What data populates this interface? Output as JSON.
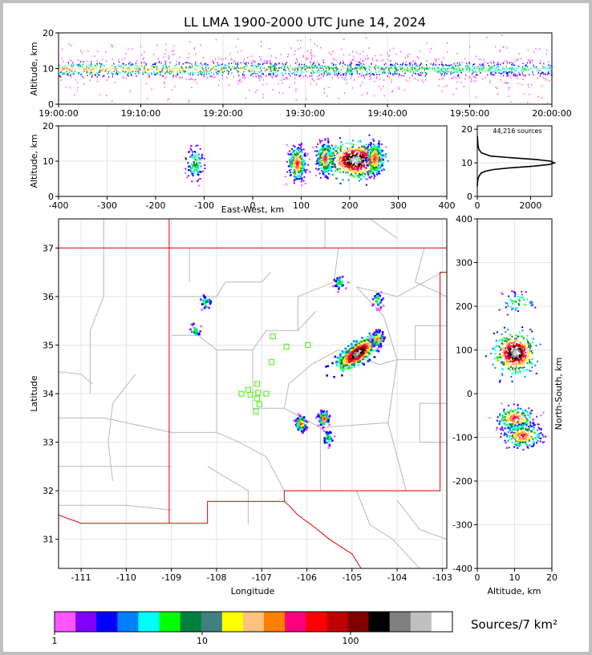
{
  "chart_data": [
    {
      "panel": "time-height",
      "type": "heatmap",
      "title": "LL LMA 1900-2000 UTC June 14, 2024",
      "ylabel": "Altitude, km",
      "xlim": [
        "19:00:00",
        "20:00:00"
      ],
      "ylim": [
        0,
        20
      ],
      "xticks": [
        "19:00:00",
        "19:10:00",
        "19:20:00",
        "19:30:00",
        "19:40:00",
        "19:50:00",
        "20:00:00"
      ],
      "yticks": [
        0,
        10,
        20
      ],
      "band_center_km": 10,
      "grid": true
    },
    {
      "panel": "east-west-altitude",
      "type": "heatmap",
      "xlabel": "East-West, km",
      "ylabel": "Altitude, km",
      "xlim": [
        -400,
        400
      ],
      "ylim": [
        0,
        20
      ],
      "xticks": [
        -400,
        -300,
        -200,
        -100,
        0,
        100,
        200,
        300,
        400
      ],
      "yticks": [
        0,
        10,
        20
      ],
      "clusters": [
        {
          "x": -120,
          "alt": 9.5,
          "density": "low"
        },
        {
          "x": 90,
          "alt": 9.5,
          "density": "medium"
        },
        {
          "x": 148,
          "alt": 11,
          "density": "medium"
        },
        {
          "x": 210,
          "alt": 10.5,
          "density": "high"
        },
        {
          "x": 250,
          "alt": 11,
          "density": "medium"
        }
      ],
      "grid": true
    },
    {
      "panel": "altitude-histogram",
      "type": "line",
      "annotation": "44,216 sources",
      "xlim": [
        0,
        2800
      ],
      "ylim": [
        0,
        21
      ],
      "xticks": [
        0,
        2000
      ],
      "yticks": [
        0,
        10,
        20
      ],
      "series": [
        {
          "x": [
            0,
            5,
            20,
            60,
            150,
            300,
            600,
            1200,
            2100,
            2700,
            2900,
            2750,
            2200,
            1300,
            500,
            150,
            60,
            30,
            15,
            5
          ],
          "y": [
            3,
            4,
            5,
            6,
            7,
            7.5,
            8,
            8.5,
            9,
            9.5,
            10,
            10.5,
            11,
            11.5,
            12,
            13,
            14,
            15,
            16.5,
            18
          ]
        }
      ]
    },
    {
      "panel": "plan-view",
      "type": "heatmap",
      "xlabel": "Longitude",
      "ylabel": "Latitude",
      "xlim": [
        -111.5,
        -102.9
      ],
      "ylim": [
        30.4,
        37.6
      ],
      "xticks": [
        -111,
        -110,
        -109,
        -108,
        -107,
        -106,
        -105,
        -104,
        -103
      ],
      "yticks": [
        31,
        32,
        33,
        34,
        35,
        36,
        37
      ],
      "clusters": [
        {
          "lon": -104.9,
          "lat": 34.85,
          "density": "high"
        },
        {
          "lon": -104.45,
          "lat": 35.15,
          "density": "medium"
        },
        {
          "lon": -105.65,
          "lat": 33.5,
          "density": "medium"
        },
        {
          "lon": -106.15,
          "lat": 33.4,
          "density": "medium"
        },
        {
          "lon": -105.55,
          "lat": 33.1,
          "density": "low"
        },
        {
          "lon": -108.5,
          "lat": 35.3,
          "density": "low"
        },
        {
          "lon": -108.25,
          "lat": 35.9,
          "density": "low"
        },
        {
          "lon": -104.45,
          "lat": 35.95,
          "density": "low"
        },
        {
          "lon": -105.3,
          "lat": 36.3,
          "density": "low"
        }
      ],
      "stations": [
        {
          "lon": -106.75,
          "lat": 35.18
        },
        {
          "lon": -106.45,
          "lat": 34.97
        },
        {
          "lon": -105.98,
          "lat": 35.0
        },
        {
          "lon": -106.78,
          "lat": 34.65
        },
        {
          "lon": -107.1,
          "lat": 34.2
        },
        {
          "lon": -107.3,
          "lat": 34.08
        },
        {
          "lon": -107.45,
          "lat": 34.0
        },
        {
          "lon": -107.25,
          "lat": 33.98
        },
        {
          "lon": -107.08,
          "lat": 34.02
        },
        {
          "lon": -106.9,
          "lat": 34.0
        },
        {
          "lon": -107.1,
          "lat": 33.9
        },
        {
          "lon": -107.05,
          "lat": 33.78
        },
        {
          "lon": -107.13,
          "lat": 33.63
        }
      ],
      "grid": true
    },
    {
      "panel": "altitude-north-south",
      "type": "heatmap",
      "xlabel": "Altitude, km",
      "ylabel": "North-South, km",
      "xlim": [
        0,
        20
      ],
      "ylim": [
        -400,
        400
      ],
      "xticks": [
        0,
        10,
        20
      ],
      "yticks": [
        -400,
        -300,
        -200,
        -100,
        0,
        100,
        200,
        300,
        400
      ],
      "clusters": [
        {
          "alt": 10,
          "y": 95,
          "density": "high"
        },
        {
          "alt": 11,
          "y": 210,
          "density": "low"
        },
        {
          "alt": 10,
          "y": -55,
          "density": "medium"
        },
        {
          "alt": 12,
          "y": -95,
          "density": "medium"
        }
      ],
      "grid": true
    }
  ],
  "colorbar": {
    "label": "Sources/7 km²",
    "tick_labels": [
      "1",
      "10",
      "100"
    ],
    "colors": [
      "#ff55ff",
      "#8000ff",
      "#0000ff",
      "#0080ff",
      "#00ffff",
      "#00ff00",
      "#008040",
      "#408080",
      "#ffff00",
      "#ffc080",
      "#ff8000",
      "#ff0080",
      "#ff0000",
      "#c00000",
      "#800000",
      "#000000",
      "#808080",
      "#c0c0c0",
      "#ffffff"
    ]
  },
  "colors": {
    "map_state_border": "#dd0000",
    "map_county_border": "#b8b8b8",
    "station_marker": "#66ee33"
  }
}
